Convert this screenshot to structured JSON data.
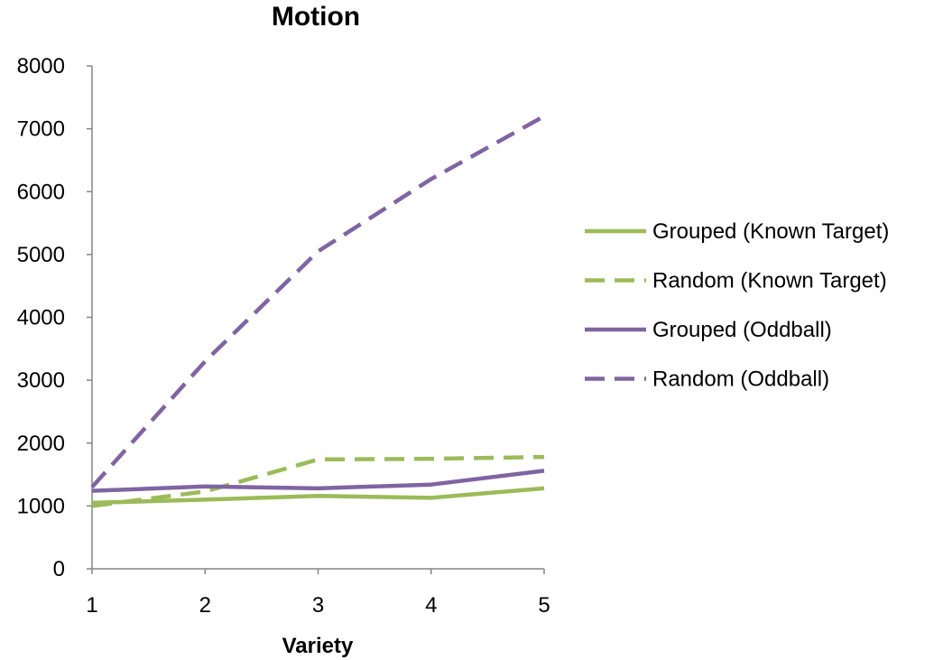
{
  "chart_data": {
    "type": "line",
    "title": "Motion",
    "xlabel": "Variety",
    "ylabel": "",
    "x": [
      1,
      2,
      3,
      4,
      5
    ],
    "xlim": [
      1,
      5
    ],
    "ylim": [
      0,
      8000
    ],
    "yticks": [
      0,
      1000,
      2000,
      3000,
      4000,
      5000,
      6000,
      7000,
      8000
    ],
    "xticks": [
      1,
      2,
      3,
      4,
      5
    ],
    "grid": false,
    "legend_position": "right",
    "series": [
      {
        "name": "Grouped (Known Target)",
        "values": [
          1050,
          1100,
          1160,
          1130,
          1280
        ],
        "color": "#9BBB59",
        "dashed": false
      },
      {
        "name": "Random (Known Target)",
        "values": [
          1000,
          1230,
          1740,
          1750,
          1780
        ],
        "color": "#9BBB59",
        "dashed": true
      },
      {
        "name": "Grouped (Oddball)",
        "values": [
          1240,
          1310,
          1280,
          1340,
          1560
        ],
        "color": "#8064A2",
        "dashed": false
      },
      {
        "name": "Random (Oddball)",
        "values": [
          1300,
          3300,
          5050,
          6200,
          7200
        ],
        "color": "#8064A2",
        "dashed": true
      }
    ]
  }
}
